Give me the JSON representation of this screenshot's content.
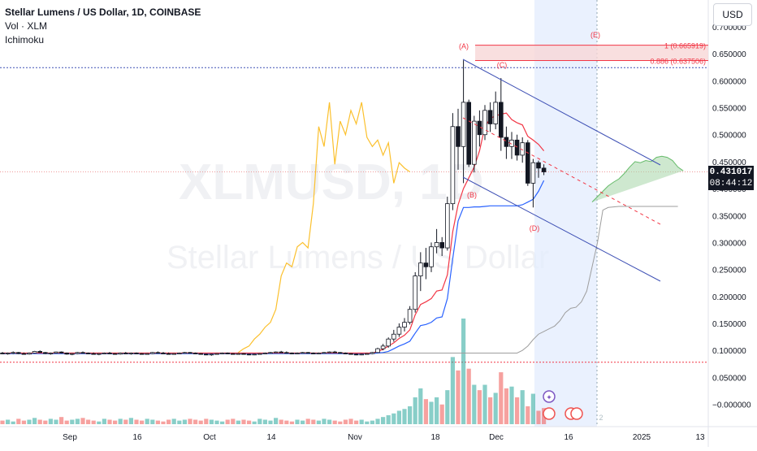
{
  "header": {
    "symbol_line": "Stellar Lumens / US Dollar, 1D, COINBASE",
    "indicators": [
      "Vol · XLM",
      "Ichimoku"
    ]
  },
  "currency_button": "USD",
  "watermark": {
    "ticker": "XLMUSD, 1D",
    "name": "Stellar Lumens / US Dollar"
  },
  "last_price": {
    "value": "0.431017",
    "countdown": "08:44:12",
    "color": "#131722"
  },
  "colors": {
    "up": "#26a69a",
    "down": "#ef5350",
    "candle": "#131722",
    "tenkan": "#f23645",
    "kijun": "#2962ff",
    "lagging": "#fbc02d",
    "cloud_bull": "#a5d6a7",
    "channel": "#3f51b5",
    "fib": "#f23645",
    "highlight": "#e3ecfd"
  },
  "annotations": [
    "(A)",
    "(B)",
    "(C)",
    "(D)",
    "(E)"
  ],
  "fib_levels": [
    {
      "label": "1 (0.665919)",
      "value": 0.665919
    },
    {
      "label": "0.886 (0.637506)",
      "value": 0.637506
    }
  ],
  "chart_data": {
    "type": "candlestick",
    "y_axis": {
      "ticks": [
        "0.700000",
        "0.650000",
        "0.600000",
        "0.550000",
        "0.500000",
        "0.450000",
        "0.400000",
        "0.350000",
        "0.300000",
        "0.250000",
        "0.200000",
        "0.150000",
        "0.100000",
        "0.050000",
        "−0.000000"
      ],
      "range": [
        -0.005,
        0.705
      ]
    },
    "x_axis": {
      "ticks": [
        "Sep",
        "16",
        "Oct",
        "14",
        "Nov",
        "18",
        "Dec",
        "16",
        "2025",
        "13"
      ]
    },
    "candles": [
      [
        0.095,
        0.097,
        0.093,
        0.094
      ],
      [
        0.094,
        0.096,
        0.092,
        0.095
      ],
      [
        0.095,
        0.098,
        0.093,
        0.096
      ],
      [
        0.096,
        0.097,
        0.093,
        0.094
      ],
      [
        0.094,
        0.096,
        0.092,
        0.093
      ],
      [
        0.093,
        0.096,
        0.092,
        0.095
      ],
      [
        0.095,
        0.099,
        0.094,
        0.098
      ],
      [
        0.098,
        0.1,
        0.095,
        0.096
      ],
      [
        0.096,
        0.097,
        0.093,
        0.094
      ],
      [
        0.094,
        0.096,
        0.092,
        0.095
      ],
      [
        0.095,
        0.098,
        0.094,
        0.097
      ],
      [
        0.097,
        0.098,
        0.094,
        0.095
      ],
      [
        0.095,
        0.096,
        0.092,
        0.093
      ],
      [
        0.093,
        0.095,
        0.091,
        0.094
      ],
      [
        0.094,
        0.097,
        0.093,
        0.096
      ],
      [
        0.096,
        0.098,
        0.094,
        0.095
      ],
      [
        0.095,
        0.096,
        0.093,
        0.094
      ],
      [
        0.094,
        0.096,
        0.092,
        0.093
      ],
      [
        0.093,
        0.095,
        0.091,
        0.094
      ],
      [
        0.094,
        0.096,
        0.093,
        0.095
      ],
      [
        0.095,
        0.097,
        0.093,
        0.094
      ],
      [
        0.094,
        0.095,
        0.092,
        0.093
      ],
      [
        0.093,
        0.096,
        0.092,
        0.095
      ],
      [
        0.095,
        0.097,
        0.093,
        0.094
      ],
      [
        0.094,
        0.096,
        0.092,
        0.095
      ],
      [
        0.095,
        0.096,
        0.093,
        0.094
      ],
      [
        0.094,
        0.095,
        0.092,
        0.093
      ],
      [
        0.093,
        0.095,
        0.092,
        0.094
      ],
      [
        0.094,
        0.097,
        0.093,
        0.096
      ],
      [
        0.096,
        0.098,
        0.094,
        0.095
      ],
      [
        0.095,
        0.097,
        0.093,
        0.094
      ],
      [
        0.094,
        0.096,
        0.092,
        0.093
      ],
      [
        0.093,
        0.095,
        0.092,
        0.094
      ],
      [
        0.094,
        0.096,
        0.093,
        0.095
      ],
      [
        0.095,
        0.097,
        0.094,
        0.096
      ],
      [
        0.096,
        0.097,
        0.094,
        0.095
      ],
      [
        0.095,
        0.096,
        0.093,
        0.094
      ],
      [
        0.094,
        0.095,
        0.092,
        0.093
      ],
      [
        0.093,
        0.094,
        0.091,
        0.092
      ],
      [
        0.092,
        0.094,
        0.09,
        0.093
      ],
      [
        0.093,
        0.095,
        0.092,
        0.094
      ],
      [
        0.094,
        0.096,
        0.093,
        0.095
      ],
      [
        0.095,
        0.096,
        0.093,
        0.094
      ],
      [
        0.094,
        0.095,
        0.092,
        0.093
      ],
      [
        0.093,
        0.095,
        0.092,
        0.094
      ],
      [
        0.094,
        0.095,
        0.092,
        0.093
      ],
      [
        0.093,
        0.094,
        0.091,
        0.092
      ],
      [
        0.092,
        0.094,
        0.091,
        0.093
      ],
      [
        0.093,
        0.095,
        0.092,
        0.094
      ],
      [
        0.094,
        0.096,
        0.093,
        0.095
      ],
      [
        0.095,
        0.097,
        0.094,
        0.096
      ],
      [
        0.096,
        0.098,
        0.095,
        0.097
      ],
      [
        0.097,
        0.099,
        0.095,
        0.096
      ],
      [
        0.096,
        0.098,
        0.094,
        0.095
      ],
      [
        0.095,
        0.096,
        0.093,
        0.094
      ],
      [
        0.094,
        0.096,
        0.093,
        0.095
      ],
      [
        0.095,
        0.097,
        0.094,
        0.096
      ],
      [
        0.096,
        0.097,
        0.094,
        0.095
      ],
      [
        0.095,
        0.096,
        0.093,
        0.094
      ],
      [
        0.094,
        0.096,
        0.093,
        0.095
      ],
      [
        0.095,
        0.097,
        0.094,
        0.096
      ],
      [
        0.096,
        0.098,
        0.095,
        0.097
      ],
      [
        0.097,
        0.099,
        0.095,
        0.096
      ],
      [
        0.096,
        0.097,
        0.094,
        0.095
      ],
      [
        0.095,
        0.096,
        0.093,
        0.094
      ],
      [
        0.094,
        0.095,
        0.092,
        0.093
      ],
      [
        0.093,
        0.094,
        0.091,
        0.092
      ],
      [
        0.092,
        0.094,
        0.091,
        0.093
      ],
      [
        0.093,
        0.095,
        0.092,
        0.094
      ],
      [
        0.094,
        0.097,
        0.093,
        0.096
      ],
      [
        0.096,
        0.105,
        0.095,
        0.103
      ],
      [
        0.103,
        0.112,
        0.1,
        0.108
      ],
      [
        0.108,
        0.124,
        0.105,
        0.121
      ],
      [
        0.121,
        0.138,
        0.116,
        0.13
      ],
      [
        0.13,
        0.15,
        0.125,
        0.143
      ],
      [
        0.143,
        0.16,
        0.135,
        0.152
      ],
      [
        0.152,
        0.182,
        0.148,
        0.176
      ],
      [
        0.176,
        0.245,
        0.17,
        0.238
      ],
      [
        0.238,
        0.282,
        0.21,
        0.262
      ],
      [
        0.262,
        0.29,
        0.232,
        0.255
      ],
      [
        0.255,
        0.3,
        0.245,
        0.292
      ],
      [
        0.292,
        0.325,
        0.28,
        0.3
      ],
      [
        0.3,
        0.31,
        0.275,
        0.29
      ],
      [
        0.29,
        0.385,
        0.285,
        0.372
      ],
      [
        0.372,
        0.54,
        0.36,
        0.515
      ],
      [
        0.515,
        0.548,
        0.435,
        0.478
      ],
      [
        0.478,
        0.638,
        0.41,
        0.56
      ],
      [
        0.56,
        0.565,
        0.44,
        0.445
      ],
      [
        0.445,
        0.535,
        0.43,
        0.525
      ],
      [
        0.525,
        0.545,
        0.478,
        0.5
      ],
      [
        0.5,
        0.555,
        0.49,
        0.545
      ],
      [
        0.545,
        0.56,
        0.505,
        0.52
      ],
      [
        0.52,
        0.58,
        0.51,
        0.56
      ],
      [
        0.56,
        0.605,
        0.47,
        0.495
      ],
      [
        0.495,
        0.515,
        0.455,
        0.478
      ],
      [
        0.478,
        0.505,
        0.455,
        0.49
      ],
      [
        0.49,
        0.5,
        0.452,
        0.462
      ],
      [
        0.462,
        0.495,
        0.448,
        0.485
      ],
      [
        0.485,
        0.49,
        0.405,
        0.41
      ],
      [
        0.41,
        0.455,
        0.365,
        0.448
      ],
      [
        0.448,
        0.452,
        0.42,
        0.438
      ],
      [
        0.438,
        0.445,
        0.425,
        0.431
      ]
    ],
    "lines": {
      "tenkan": [
        0.095,
        0.095,
        0.095,
        0.095,
        0.095,
        0.095,
        0.095,
        0.095,
        0.095,
        0.095,
        0.095,
        0.095,
        0.095,
        0.095,
        0.095,
        0.095,
        0.095,
        0.095,
        0.095,
        0.095,
        0.095,
        0.095,
        0.095,
        0.095,
        0.095,
        0.095,
        0.095,
        0.095,
        0.095,
        0.095,
        0.095,
        0.095,
        0.095,
        0.095,
        0.095,
        0.095,
        0.095,
        0.095,
        0.095,
        0.095,
        0.095,
        0.095,
        0.095,
        0.095,
        0.095,
        0.095,
        0.095,
        0.095,
        0.095,
        0.095,
        0.095,
        0.095,
        0.095,
        0.095,
        0.095,
        0.095,
        0.095,
        0.095,
        0.095,
        0.095,
        0.095,
        0.095,
        0.095,
        0.095,
        0.095,
        0.095,
        0.095,
        0.095,
        0.095,
        0.095,
        0.098,
        0.102,
        0.108,
        0.114,
        0.122,
        0.128,
        0.138,
        0.166,
        0.185,
        0.19,
        0.196,
        0.21,
        0.212,
        0.24,
        0.32,
        0.37,
        0.4,
        0.42,
        0.44,
        0.47,
        0.515,
        0.53,
        0.535,
        0.538,
        0.54,
        0.528,
        0.522,
        0.518,
        0.497,
        0.49,
        0.482,
        0.47
      ],
      "kijun": [
        0.094,
        0.094,
        0.094,
        0.094,
        0.094,
        0.094,
        0.094,
        0.094,
        0.094,
        0.094,
        0.094,
        0.094,
        0.094,
        0.094,
        0.094,
        0.094,
        0.094,
        0.094,
        0.094,
        0.094,
        0.094,
        0.094,
        0.094,
        0.094,
        0.094,
        0.094,
        0.094,
        0.094,
        0.094,
        0.094,
        0.094,
        0.094,
        0.094,
        0.094,
        0.094,
        0.094,
        0.094,
        0.094,
        0.094,
        0.094,
        0.094,
        0.094,
        0.094,
        0.094,
        0.094,
        0.094,
        0.094,
        0.094,
        0.094,
        0.094,
        0.094,
        0.094,
        0.094,
        0.094,
        0.094,
        0.094,
        0.094,
        0.094,
        0.094,
        0.094,
        0.094,
        0.094,
        0.094,
        0.094,
        0.094,
        0.094,
        0.094,
        0.094,
        0.094,
        0.094,
        0.095,
        0.096,
        0.098,
        0.103,
        0.108,
        0.112,
        0.117,
        0.132,
        0.146,
        0.148,
        0.152,
        0.16,
        0.162,
        0.196,
        0.27,
        0.34,
        0.365,
        0.365,
        0.366,
        0.366,
        0.367,
        0.368,
        0.368,
        0.368,
        0.368,
        0.368,
        0.368,
        0.37,
        0.375,
        0.38,
        0.395,
        0.415
      ],
      "lagging": [
        null,
        null,
        null,
        null,
        null,
        null,
        null,
        null,
        null,
        null,
        null,
        null,
        null,
        null,
        null,
        null,
        null,
        null,
        null,
        null,
        null,
        null,
        null,
        null,
        null,
        null,
        null,
        null,
        null,
        null,
        null,
        null,
        null,
        null,
        null,
        null,
        null,
        null,
        null,
        null,
        null,
        null,
        null,
        null,
        0.096,
        0.103,
        0.108,
        0.121,
        0.13,
        0.143,
        0.152,
        0.176,
        0.238,
        0.262,
        0.255,
        0.292,
        0.3,
        0.29,
        0.372,
        0.515,
        0.478,
        0.56,
        0.445,
        0.525,
        0.5,
        0.545,
        0.52,
        0.56,
        0.495,
        0.478,
        0.49,
        0.462,
        0.485,
        0.41,
        0.448,
        0.438,
        0.431
      ],
      "span_b": [
        0.095,
        0.095,
        0.095,
        0.095,
        0.095,
        0.095,
        0.095,
        0.095,
        0.095,
        0.095,
        0.095,
        0.095,
        0.095,
        0.095,
        0.095,
        0.095,
        0.095,
        0.095,
        0.095,
        0.095,
        0.095,
        0.095,
        0.095,
        0.095,
        0.095,
        0.095,
        0.095,
        0.095,
        0.095,
        0.095,
        0.095,
        0.095,
        0.095,
        0.095,
        0.095,
        0.095,
        0.095,
        0.095,
        0.095,
        0.095,
        0.095,
        0.095,
        0.095,
        0.095,
        0.095,
        0.095,
        0.095,
        0.095,
        0.095,
        0.095,
        0.095,
        0.095,
        0.095,
        0.095,
        0.095,
        0.095,
        0.095,
        0.095,
        0.095,
        0.095,
        0.095,
        0.095,
        0.095,
        0.095,
        0.095,
        0.095,
        0.095,
        0.095,
        0.095,
        0.095,
        0.095,
        0.095,
        0.095,
        0.095,
        0.095,
        0.095,
        0.095,
        0.095,
        0.095,
        0.095,
        0.095,
        0.095,
        0.095,
        0.095,
        0.095,
        0.095,
        0.095,
        0.095,
        0.095,
        0.095,
        0.095,
        0.095,
        0.095,
        0.095,
        0.095,
        0.095,
        0.095,
        0.1,
        0.108,
        0.12,
        0.13,
        0.135,
        0.14,
        0.145,
        0.155,
        0.17,
        0.178,
        0.18,
        0.19,
        0.21,
        0.255,
        0.3,
        0.36,
        0.365,
        0.366,
        0.367,
        0.367,
        0.367,
        0.367,
        0.367,
        0.367,
        0.367,
        0.367,
        0.367,
        0.367,
        0.367,
        0.367
      ],
      "span_a": [
        null,
        null,
        null,
        null,
        null,
        null,
        null,
        null,
        null,
        null,
        null,
        null,
        null,
        null,
        null,
        null,
        null,
        null,
        null,
        null,
        null,
        null,
        null,
        null,
        null,
        null,
        null,
        null,
        null,
        null,
        null,
        null,
        null,
        null,
        null,
        null,
        null,
        null,
        null,
        null,
        null,
        null,
        null,
        null,
        null,
        null,
        null,
        null,
        null,
        null,
        null,
        null,
        null,
        null,
        null,
        null,
        null,
        null,
        null,
        null,
        null,
        null,
        null,
        null,
        null,
        null,
        null,
        null,
        null,
        null,
        null,
        null,
        null,
        null,
        null,
        null,
        null,
        null,
        null,
        null,
        null,
        null,
        null,
        null,
        null,
        null,
        null,
        null,
        null,
        null,
        null,
        null,
        null,
        null,
        null,
        null,
        null,
        null,
        null,
        null,
        null,
        null,
        null,
        null,
        null,
        null,
        null,
        null,
        null,
        null,
        0.375,
        0.385,
        0.395,
        0.405,
        0.412,
        0.418,
        0.428,
        0.44,
        0.45,
        0.448,
        0.452,
        0.45,
        0.458,
        0.46,
        0.458,
        0.452,
        0.44,
        0.433
      ]
    },
    "volume": [
      4,
      5,
      3,
      6,
      4,
      5,
      7,
      5,
      4,
      6,
      5,
      8,
      4,
      5,
      6,
      7,
      5,
      4,
      3,
      6,
      5,
      4,
      6,
      5,
      7,
      5,
      4,
      6,
      5,
      4,
      3,
      5,
      6,
      4,
      5,
      6,
      5,
      4,
      6,
      5,
      4,
      3,
      5,
      6,
      4,
      5,
      4,
      3,
      6,
      5,
      4,
      7,
      5,
      4,
      3,
      5,
      4,
      6,
      5,
      4,
      6,
      5,
      4,
      3,
      5,
      6,
      4,
      5,
      3,
      4,
      6,
      8,
      10,
      12,
      15,
      17,
      20,
      30,
      40,
      28,
      25,
      30,
      22,
      38,
      75,
      60,
      118,
      62,
      44,
      38,
      44,
      30,
      35,
      58,
      40,
      42,
      30,
      38,
      20,
      34,
      15,
      18
    ]
  }
}
